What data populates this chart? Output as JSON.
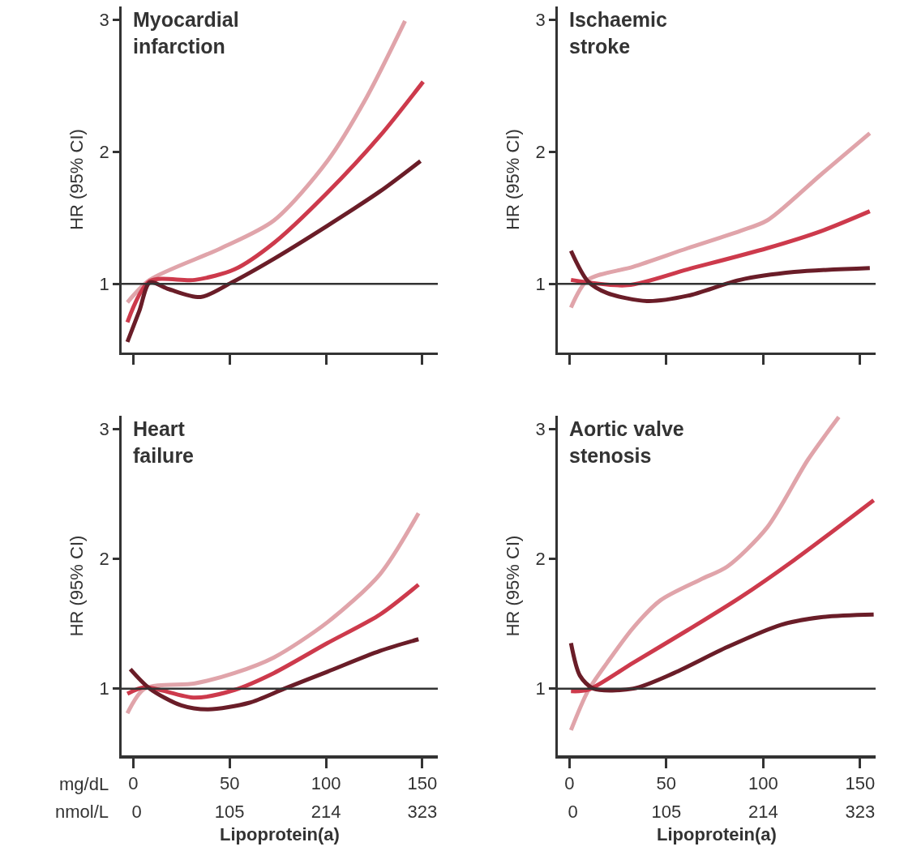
{
  "chart_data": [
    {
      "type": "line",
      "title": "Myocardial infarction",
      "ylabel": "HR (95% CI)",
      "xlim": [
        -6,
        158
      ],
      "xticks": [
        0,
        50,
        100,
        150
      ],
      "ylim": [
        0.48,
        3.1
      ],
      "yticks": [
        1,
        2,
        3
      ],
      "tick_labels": "y",
      "marker": "none",
      "line_style": "solid",
      "ref_lines": [
        {
          "axis": "y",
          "value": 1,
          "color": "#333333"
        }
      ],
      "series": [
        {
          "color": "#e0a4aa",
          "x": [
            -3,
            8.6,
            45.6,
            73,
            100.7,
            121,
            141
          ],
          "values": [
            0.86,
            1.03,
            1.27,
            1.48,
            1.93,
            2.41,
            2.99
          ]
        },
        {
          "color": "#cd3a4c",
          "x": [
            -3,
            8.6,
            32,
            52.6,
            73,
            100.7,
            128,
            150.4
          ],
          "values": [
            0.71,
            1.02,
            1.03,
            1.11,
            1.31,
            1.69,
            2.12,
            2.53
          ]
        },
        {
          "color": "#6a1d28",
          "x": [
            -3,
            3.3,
            8.6,
            18.5,
            35,
            51,
            73,
            100.7,
            128,
            149
          ],
          "values": [
            0.56,
            0.8,
            1.01,
            0.96,
            0.9,
            1.01,
            1.19,
            1.44,
            1.7,
            1.93
          ]
        }
      ]
    },
    {
      "type": "line",
      "title": "Ischaemic stroke",
      "ylabel": "HR (95% CI)",
      "xlim": [
        -6,
        158
      ],
      "xticks": [
        0,
        50,
        100,
        150
      ],
      "ylim": [
        0.48,
        3.1
      ],
      "yticks": [
        1,
        2,
        3
      ],
      "tick_labels": "y",
      "marker": "none",
      "line_style": "solid",
      "ref_lines": [
        {
          "axis": "y",
          "value": 1,
          "color": "#333333"
        }
      ],
      "series": [
        {
          "color": "#e0a4aa",
          "x": [
            0.8,
            9.5,
            33,
            61,
            88,
            102,
            130,
            155
          ],
          "values": [
            0.82,
            1.03,
            1.13,
            1.27,
            1.4,
            1.48,
            1.83,
            2.14
          ]
        },
        {
          "color": "#cd3a4c",
          "x": [
            0.8,
            30,
            61,
            102,
            130,
            155
          ],
          "values": [
            1.03,
            0.99,
            1.11,
            1.27,
            1.4,
            1.55
          ]
        },
        {
          "color": "#6a1d28",
          "x": [
            0.8,
            9.5,
            19.5,
            40,
            61,
            88,
            116,
            155
          ],
          "values": [
            1.25,
            1.02,
            0.93,
            0.87,
            0.91,
            1.03,
            1.09,
            1.12
          ]
        }
      ]
    },
    {
      "type": "line",
      "title": "Heart failure",
      "ylabel": "HR (95% CI)",
      "xlabel": "Lipoprotein(a)",
      "xlim": [
        -6,
        158
      ],
      "xticks": [
        0,
        50,
        100,
        150
      ],
      "x2lim": [
        -17.08,
        340.44
      ],
      "x2ticks": [
        0,
        105,
        214,
        323
      ],
      "ylim": [
        0.48,
        3.1
      ],
      "yticks": [
        1,
        2,
        3
      ],
      "marker": "none",
      "line_style": "solid",
      "annotations": [
        "mg/dL",
        "nmol/L"
      ],
      "ref_lines": [
        {
          "axis": "y",
          "value": 1,
          "color": "#333333"
        }
      ],
      "series": [
        {
          "color": "#e0a4aa",
          "x": [
            -3,
            6,
            32,
            52.6,
            73,
            100.7,
            128,
            148
          ],
          "values": [
            0.81,
            1.0,
            1.04,
            1.12,
            1.24,
            1.51,
            1.88,
            2.35
          ]
        },
        {
          "color": "#cd3a4c",
          "x": [
            -3,
            6,
            32,
            52.6,
            73,
            100.7,
            128,
            148
          ],
          "values": [
            0.96,
            1.01,
            0.93,
            0.99,
            1.12,
            1.35,
            1.57,
            1.8
          ]
        },
        {
          "color": "#6a1d28",
          "x": [
            -1.5,
            8.6,
            25,
            39,
            60,
            78.5,
            100.7,
            128,
            148
          ],
          "values": [
            1.15,
            1.0,
            0.87,
            0.84,
            0.89,
            1.0,
            1.13,
            1.29,
            1.38
          ]
        }
      ]
    },
    {
      "type": "line",
      "title": "Aortic valve stenosis",
      "ylabel": "HR (95% CI)",
      "xlabel": "Lipoprotein(a)",
      "xlim": [
        -6,
        158
      ],
      "xticks": [
        0,
        50,
        100,
        150
      ],
      "x2lim": [
        -17.08,
        340.44
      ],
      "x2ticks": [
        0,
        105,
        214,
        323
      ],
      "ylim": [
        0.48,
        3.1
      ],
      "yticks": [
        1,
        2,
        3
      ],
      "marker": "none",
      "line_style": "solid",
      "ref_lines": [
        {
          "axis": "y",
          "value": 1,
          "color": "#333333"
        }
      ],
      "series": [
        {
          "color": "#e0a4aa",
          "x": [
            0.8,
            9.5,
            19.5,
            33,
            47,
            67.7,
            81.5,
            102,
            123,
            139
          ],
          "values": [
            0.68,
            0.98,
            1.2,
            1.47,
            1.68,
            1.84,
            1.94,
            2.24,
            2.76,
            3.09
          ]
        },
        {
          "color": "#cd3a4c",
          "x": [
            0.8,
            9.5,
            33,
            61,
            88,
            116,
            157
          ],
          "values": [
            0.98,
            0.99,
            1.2,
            1.45,
            1.7,
            1.99,
            2.45
          ]
        },
        {
          "color": "#6a1d28",
          "x": [
            0.8,
            5.4,
            12.4,
            33,
            54,
            81.5,
            109,
            130,
            157
          ],
          "values": [
            1.35,
            1.1,
            1.0,
            1.0,
            1.12,
            1.32,
            1.49,
            1.55,
            1.57
          ]
        }
      ]
    }
  ]
}
